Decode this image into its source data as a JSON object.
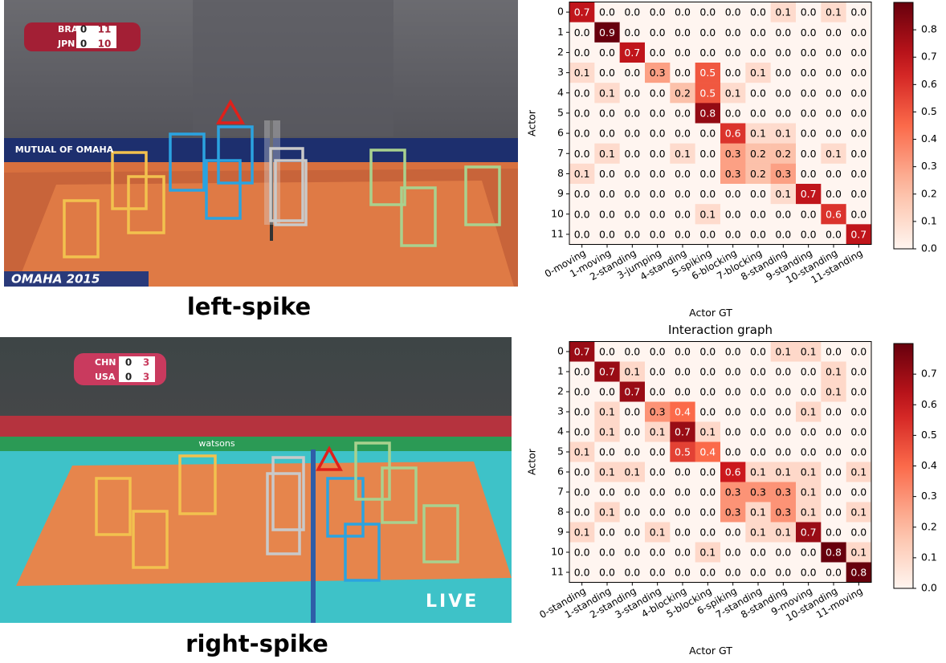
{
  "photos": [
    {
      "caption": "left-spike",
      "scoreboard": [
        {
          "team": "BRA",
          "sets": "0",
          "points": "11"
        },
        {
          "team": "JPN",
          "sets": "0",
          "points": "10"
        }
      ],
      "overlay_texts": [
        "MUTUAL OF OMAHA",
        "OMAHA 2015"
      ]
    },
    {
      "caption": "right-spike",
      "scoreboard": [
        {
          "team": "CHN",
          "sets": "0",
          "points": "3"
        },
        {
          "team": "USA",
          "sets": "0",
          "points": "3"
        }
      ],
      "overlay_texts": [
        "watsons",
        "LIVE"
      ]
    }
  ],
  "chart_data": [
    {
      "type": "heatmap",
      "xlabel": "Actor GT",
      "ylabel": "Actor",
      "x_categories": [
        "0-moving",
        "1-moving",
        "2-standing",
        "3-jumping",
        "4-standing",
        "5-spiking",
        "6-blocking",
        "7-blocking",
        "8-standing",
        "9-standing",
        "10-standing",
        "11-standing"
      ],
      "y_categories": [
        0,
        1,
        2,
        3,
        4,
        5,
        6,
        7,
        8,
        9,
        10,
        11
      ],
      "values": [
        [
          0.7,
          0,
          0,
          0,
          0,
          0,
          0,
          0,
          0.1,
          0,
          0.1,
          0
        ],
        [
          0,
          0.9,
          0,
          0,
          0,
          0,
          0,
          0,
          0,
          0,
          0,
          0
        ],
        [
          0,
          0,
          0.7,
          0,
          0,
          0,
          0,
          0,
          0,
          0,
          0,
          0
        ],
        [
          0.1,
          0,
          0,
          0.3,
          0,
          0.5,
          0,
          0.1,
          0,
          0,
          0,
          0
        ],
        [
          0,
          0.1,
          0,
          0,
          0.2,
          0.5,
          0.1,
          0,
          0,
          0,
          0,
          0
        ],
        [
          0,
          0,
          0,
          0,
          0,
          0.8,
          0,
          0,
          0,
          0,
          0,
          0
        ],
        [
          0,
          0,
          0,
          0,
          0,
          0,
          0.6,
          0.1,
          0.1,
          0,
          0,
          0
        ],
        [
          0,
          0.1,
          0,
          0,
          0.1,
          0,
          0.3,
          0.2,
          0.2,
          0,
          0.1,
          0
        ],
        [
          0.1,
          0,
          0,
          0,
          0,
          0,
          0.3,
          0.2,
          0.3,
          0,
          0,
          0
        ],
        [
          0,
          0,
          0,
          0,
          0,
          0,
          0,
          0,
          0.1,
          0.7,
          0,
          0
        ],
        [
          0,
          0,
          0,
          0,
          0,
          0.1,
          0,
          0,
          0,
          0,
          0.6,
          0
        ],
        [
          0,
          0,
          0,
          0,
          0,
          0,
          0,
          0,
          0,
          0,
          0,
          0.7
        ]
      ],
      "value_labels": [
        [
          "0.7",
          "0.0",
          "0.0",
          "0.0",
          "0.0",
          "0.0",
          "0.0",
          "0.0",
          "0.1",
          "0.0",
          "0.1",
          "0.0"
        ],
        [
          "0.0",
          "0.9",
          "0.0",
          "0.0",
          "0.0",
          "0.0",
          "0.0",
          "0.0",
          "0.0",
          "0.0",
          "0.0",
          "0.0"
        ],
        [
          "0.0",
          "0.0",
          "0.7",
          "0.0",
          "0.0",
          "0.0",
          "0.0",
          "0.0",
          "0.0",
          "0.0",
          "0.0",
          "0.0"
        ],
        [
          "0.1",
          "0.0",
          "0.0",
          "0.3",
          "0.0",
          "0.5",
          "0.0",
          "0.1",
          "0.0",
          "0.0",
          "0.0",
          "0.0"
        ],
        [
          "0.0",
          "0.1",
          "0.0",
          "0.0",
          "0.2",
          "0.5",
          "0.1",
          "0.0",
          "0.0",
          "0.0",
          "0.0",
          "0.0"
        ],
        [
          "0.0",
          "0.0",
          "0.0",
          "0.0",
          "0.0",
          "0.8",
          "0.0",
          "0.0",
          "0.0",
          "0.0",
          "0.0",
          "0.0"
        ],
        [
          "0.0",
          "0.0",
          "0.0",
          "0.0",
          "0.0",
          "0.0",
          "0.6",
          "0.1",
          "0.1",
          "0.0",
          "0.0",
          "0.0"
        ],
        [
          "0.0",
          "0.1",
          "0.0",
          "0.0",
          "0.1",
          "0.0",
          "0.3",
          "0.2",
          "0.2",
          "0.0",
          "0.1",
          "0.0"
        ],
        [
          "0.1",
          "0.0",
          "0.0",
          "0.0",
          "0.0",
          "0.0",
          "0.3",
          "0.2",
          "0.3",
          "0.0",
          "0.0",
          "0.0"
        ],
        [
          "0.0",
          "0.0",
          "0.0",
          "0.0",
          "0.0",
          "0.0",
          "0.0",
          "0.0",
          "0.1",
          "0.7",
          "0.0",
          "0.0"
        ],
        [
          "0.0",
          "0.0",
          "0.0",
          "0.0",
          "0.0",
          "0.1",
          "0.0",
          "0.0",
          "0.0",
          "0.0",
          "0.6",
          "0.0"
        ],
        [
          "0.0",
          "0.0",
          "0.0",
          "0.0",
          "0.0",
          "0.0",
          "0.0",
          "0.0",
          "0.0",
          "0.0",
          "0.0",
          "0.7"
        ]
      ],
      "colormap": "Reds",
      "clim": [
        0,
        0.9
      ],
      "cticks": [
        {
          "value": 0,
          "label": "0.0"
        },
        0.1,
        0.2,
        0.3,
        0.4,
        0.5,
        0.6,
        0.7,
        0.8
      ]
    },
    {
      "type": "heatmap",
      "title": "Interaction graph",
      "xlabel": "Actor GT",
      "ylabel": "Actor",
      "x_categories": [
        "0-standing",
        "1-standing",
        "2-standing",
        "3-standing",
        "4-blocking",
        "5-blocking",
        "6-spiking",
        "7-standing",
        "8-standing",
        "9-moving",
        "10-standing",
        "11-moving"
      ],
      "y_categories": [
        0,
        1,
        2,
        3,
        4,
        5,
        6,
        7,
        8,
        9,
        10,
        11
      ],
      "values": [
        [
          0.7,
          0,
          0,
          0,
          0,
          0,
          0,
          0,
          0.1,
          0.1,
          0,
          0
        ],
        [
          0,
          0.7,
          0.1,
          0,
          0,
          0,
          0,
          0,
          0,
          0,
          0.1,
          0
        ],
        [
          0,
          0,
          0.7,
          0,
          0,
          0,
          0,
          0,
          0,
          0,
          0.1,
          0
        ],
        [
          0,
          0.1,
          0,
          0.3,
          0.4,
          0,
          0,
          0,
          0,
          0.1,
          0,
          0
        ],
        [
          0,
          0.1,
          0,
          0.1,
          0.7,
          0.1,
          0,
          0,
          0,
          0,
          0,
          0
        ],
        [
          0.1,
          0,
          0,
          0,
          0.5,
          0.4,
          0,
          0,
          0,
          0,
          0,
          0
        ],
        [
          0,
          0.1,
          0.1,
          0,
          0,
          0,
          0.6,
          0.1,
          0.1,
          0.1,
          0,
          0.1
        ],
        [
          0,
          0,
          0,
          0,
          0,
          0,
          0.3,
          0.3,
          0.3,
          0.1,
          0,
          0
        ],
        [
          0,
          0.1,
          0,
          0,
          0,
          0,
          0.3,
          0.1,
          0.3,
          0.1,
          0,
          0.1
        ],
        [
          0.1,
          0,
          0,
          0.1,
          0,
          0,
          0,
          0.1,
          0.1,
          0.7,
          0,
          0
        ],
        [
          0,
          0,
          0,
          0,
          0,
          0.1,
          0,
          0,
          0,
          0,
          0.8,
          0.1
        ],
        [
          0,
          0,
          0,
          0,
          0,
          0,
          0,
          0,
          0,
          0,
          0,
          0.8
        ]
      ],
      "value_labels": [
        [
          "0.7",
          "0.0",
          "0.0",
          "0.0",
          "0.0",
          "0.0",
          "0.0",
          "0.0",
          "0.1",
          "0.1",
          "0.0",
          "0.0"
        ],
        [
          "0.0",
          "0.7",
          "0.1",
          "0.0",
          "0.0",
          "0.0",
          "0.0",
          "0.0",
          "0.0",
          "0.0",
          "0.1",
          "0.0"
        ],
        [
          "0.0",
          "0.0",
          "0.7",
          "0.0",
          "0.0",
          "0.0",
          "0.0",
          "0.0",
          "0.0",
          "0.0",
          "0.1",
          "0.0"
        ],
        [
          "0.0",
          "0.1",
          "0.0",
          "0.3",
          "0.4",
          "0.0",
          "0.0",
          "0.0",
          "0.0",
          "0.1",
          "0.0",
          "0.0"
        ],
        [
          "0.0",
          "0.1",
          "0.0",
          "0.1",
          "0.7",
          "0.1",
          "0.0",
          "0.0",
          "0.0",
          "0.0",
          "0.0",
          "0.0"
        ],
        [
          "0.1",
          "0.0",
          "0.0",
          "0.0",
          "0.5",
          "0.4",
          "0.0",
          "0.0",
          "0.0",
          "0.0",
          "0.0",
          "0.0"
        ],
        [
          "0.0",
          "0.1",
          "0.1",
          "0.0",
          "0.0",
          "0.0",
          "0.6",
          "0.1",
          "0.1",
          "0.1",
          "0.0",
          "0.1"
        ],
        [
          "0.0",
          "0.0",
          "0.0",
          "0.0",
          "0.0",
          "0.0",
          "0.3",
          "0.3",
          "0.3",
          "0.1",
          "0.0",
          "0.0"
        ],
        [
          "0.0",
          "0.1",
          "0.0",
          "0.0",
          "0.0",
          "0.0",
          "0.3",
          "0.1",
          "0.3",
          "0.1",
          "0.0",
          "0.1"
        ],
        [
          "0.1",
          "0.0",
          "0.0",
          "0.1",
          "0.0",
          "0.0",
          "0.0",
          "0.1",
          "0.1",
          "0.7",
          "0.0",
          "0.0"
        ],
        [
          "0.0",
          "0.0",
          "0.0",
          "0.0",
          "0.0",
          "0.1",
          "0.0",
          "0.0",
          "0.0",
          "0.0",
          "0.8",
          "0.1"
        ],
        [
          "0.0",
          "0.0",
          "0.0",
          "0.0",
          "0.0",
          "0.0",
          "0.0",
          "0.0",
          "0.0",
          "0.0",
          "0.0",
          "0.8"
        ]
      ],
      "colormap": "Reds",
      "clim": [
        0,
        0.8
      ],
      "cticks": [
        {
          "value": 0,
          "label": "0.0"
        },
        0.1,
        0.2,
        0.3,
        0.4,
        0.5,
        0.6,
        0.7
      ]
    }
  ]
}
